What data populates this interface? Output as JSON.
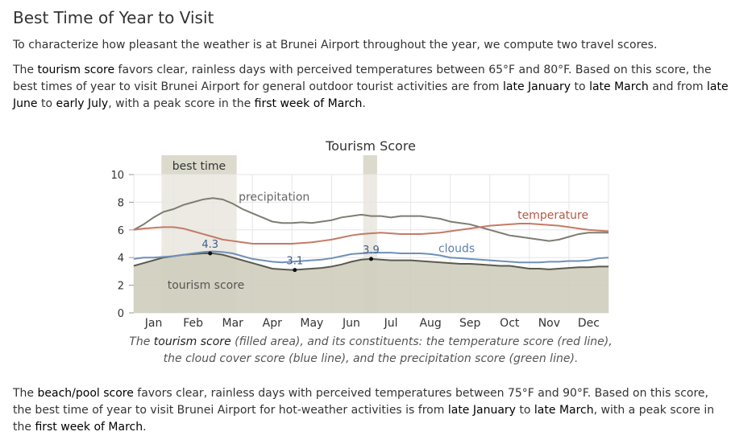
{
  "heading": "Best Time of Year to Visit",
  "intro": "To characterize how pleasant the weather is at Brunei Airport throughout the year, we compute two travel scores.",
  "tourism_para": {
    "p1": "The ",
    "k1": "tourism score",
    "p2": " favors clear, rainless days with perceived temperatures between 65°F and 80°F. Based on this score, the best times of year to visit Brunei Airport for general outdoor tourist activities are from ",
    "k2": "late January",
    "p3": " to ",
    "k3": "late March",
    "p4": " and from ",
    "k4": "late June",
    "p5": " to ",
    "k5": "early July",
    "p6": ", with a peak score in the ",
    "k6": "first week of March",
    "p7": "."
  },
  "caption": {
    "p1": "The ",
    "k1": "tourism score",
    "p2": " (filled area), and its constituents: the temperature score (red line), the cloud cover score (blue line), and the precipitation score (green line)."
  },
  "beach_para": {
    "p1": "The ",
    "k1": "beach/pool score",
    "p2": " favors clear, rainless days with perceived temperatures between 75°F and 90°F. Based on this score, the best time of year to visit Brunei Airport for hot-weather activities is from ",
    "k2": "late January",
    "p3": " to ",
    "k3": "late March",
    "p4": ", with a peak score in the ",
    "k4": "first week of March",
    "p5": "."
  },
  "chart_data": {
    "type": "area",
    "title": "Tourism Score",
    "ylim": [
      0,
      10
    ],
    "yticks": [
      0,
      2,
      4,
      6,
      8,
      10
    ],
    "xlim": [
      0,
      12
    ],
    "categories": [
      "Jan",
      "Feb",
      "Mar",
      "Apr",
      "May",
      "Jun",
      "Jul",
      "Aug",
      "Sep",
      "Oct",
      "Nov",
      "Dec"
    ],
    "best_time_label": "best time",
    "best_time_ranges": [
      [
        0.7,
        2.6
      ],
      [
        5.8,
        6.15
      ]
    ],
    "colors": {
      "tourism_fill": "#cfcdbd",
      "tourism_line": "#5a5a4e",
      "precipitation": "#7d7d72",
      "temperature": "#c47a66",
      "clouds": "#6f8fb8",
      "band": "#eceae2",
      "grid": "#e6e6e6"
    },
    "series": [
      {
        "name": "tourism score",
        "key": "tourism",
        "x": [
          0,
          0.25,
          0.5,
          0.75,
          1,
          1.25,
          1.5,
          1.75,
          2,
          2.25,
          2.5,
          2.75,
          3,
          3.25,
          3.5,
          3.75,
          4,
          4.25,
          4.5,
          4.75,
          5,
          5.25,
          5.5,
          5.75,
          6,
          6.25,
          6.5,
          6.75,
          7,
          7.25,
          7.5,
          7.75,
          8,
          8.25,
          8.5,
          8.75,
          9,
          9.25,
          9.5,
          9.75,
          10,
          10.25,
          10.5,
          10.75,
          11,
          11.25,
          11.5,
          11.75,
          12
        ],
        "values": [
          3.4,
          3.6,
          3.8,
          4.0,
          4.1,
          4.2,
          4.25,
          4.3,
          4.3,
          4.2,
          4.0,
          3.8,
          3.6,
          3.4,
          3.2,
          3.15,
          3.1,
          3.15,
          3.2,
          3.25,
          3.35,
          3.5,
          3.7,
          3.85,
          3.9,
          3.85,
          3.8,
          3.8,
          3.8,
          3.75,
          3.7,
          3.65,
          3.6,
          3.55,
          3.55,
          3.5,
          3.45,
          3.4,
          3.4,
          3.3,
          3.2,
          3.2,
          3.15,
          3.2,
          3.25,
          3.3,
          3.3,
          3.35,
          3.35
        ]
      },
      {
        "name": "precipitation",
        "key": "precipitation",
        "x": [
          0,
          0.25,
          0.5,
          0.75,
          1,
          1.25,
          1.5,
          1.75,
          2,
          2.25,
          2.5,
          2.75,
          3,
          3.25,
          3.5,
          3.75,
          4,
          4.25,
          4.5,
          4.75,
          5,
          5.25,
          5.5,
          5.75,
          6,
          6.25,
          6.5,
          6.75,
          7,
          7.25,
          7.5,
          7.75,
          8,
          8.25,
          8.5,
          8.75,
          9,
          9.25,
          9.5,
          9.75,
          10,
          10.25,
          10.5,
          10.75,
          11,
          11.25,
          11.5,
          11.75,
          12
        ],
        "values": [
          6.0,
          6.4,
          6.9,
          7.3,
          7.5,
          7.8,
          8.0,
          8.2,
          8.3,
          8.2,
          7.9,
          7.5,
          7.2,
          6.9,
          6.6,
          6.5,
          6.5,
          6.55,
          6.5,
          6.6,
          6.7,
          6.9,
          7.0,
          7.1,
          7.0,
          7.0,
          6.9,
          7.0,
          7.0,
          7.0,
          6.9,
          6.8,
          6.6,
          6.5,
          6.4,
          6.2,
          6.0,
          5.8,
          5.6,
          5.5,
          5.4,
          5.3,
          5.2,
          5.3,
          5.5,
          5.7,
          5.8,
          5.8,
          5.8
        ]
      },
      {
        "name": "temperature",
        "key": "temperature",
        "x": [
          0,
          0.25,
          0.5,
          0.75,
          1,
          1.25,
          1.5,
          1.75,
          2,
          2.25,
          2.5,
          2.75,
          3,
          3.25,
          3.5,
          3.75,
          4,
          4.25,
          4.5,
          4.75,
          5,
          5.25,
          5.5,
          5.75,
          6,
          6.25,
          6.5,
          6.75,
          7,
          7.25,
          7.5,
          7.75,
          8,
          8.25,
          8.5,
          8.75,
          9,
          9.25,
          9.5,
          9.75,
          10,
          10.25,
          10.5,
          10.75,
          11,
          11.25,
          11.5,
          11.75,
          12
        ],
        "values": [
          6.0,
          6.1,
          6.15,
          6.2,
          6.2,
          6.1,
          5.9,
          5.7,
          5.5,
          5.3,
          5.2,
          5.1,
          5.0,
          5.0,
          5.0,
          5.0,
          5.0,
          5.05,
          5.1,
          5.2,
          5.3,
          5.45,
          5.6,
          5.7,
          5.75,
          5.8,
          5.75,
          5.7,
          5.7,
          5.7,
          5.75,
          5.8,
          5.9,
          6.0,
          6.1,
          6.2,
          6.3,
          6.35,
          6.4,
          6.45,
          6.45,
          6.4,
          6.35,
          6.3,
          6.2,
          6.1,
          6.0,
          5.95,
          5.9
        ]
      },
      {
        "name": "clouds",
        "key": "clouds",
        "x": [
          0,
          0.25,
          0.5,
          0.75,
          1,
          1.25,
          1.5,
          1.75,
          2,
          2.25,
          2.5,
          2.75,
          3,
          3.25,
          3.5,
          3.75,
          4,
          4.25,
          4.5,
          4.75,
          5,
          5.25,
          5.5,
          5.75,
          6,
          6.25,
          6.5,
          6.75,
          7,
          7.25,
          7.5,
          7.75,
          8,
          8.25,
          8.5,
          8.75,
          9,
          9.25,
          9.5,
          9.75,
          10,
          10.25,
          10.5,
          10.75,
          11,
          11.25,
          11.5,
          11.75,
          12
        ],
        "values": [
          3.9,
          4.0,
          4.0,
          4.05,
          4.1,
          4.2,
          4.3,
          4.4,
          4.45,
          4.4,
          4.3,
          4.1,
          3.9,
          3.8,
          3.7,
          3.65,
          3.7,
          3.75,
          3.8,
          3.85,
          3.95,
          4.1,
          4.25,
          4.3,
          4.35,
          4.35,
          4.35,
          4.3,
          4.3,
          4.3,
          4.25,
          4.15,
          4.0,
          3.95,
          3.9,
          3.85,
          3.8,
          3.75,
          3.7,
          3.65,
          3.65,
          3.65,
          3.7,
          3.7,
          3.75,
          3.75,
          3.8,
          3.95,
          4.0
        ]
      }
    ],
    "series_labels": [
      {
        "text": "precipitation",
        "x": 2.65,
        "y": 8.1,
        "key": "precipitation"
      },
      {
        "text": "temperature",
        "x": 9.7,
        "y": 6.8,
        "key": "temperature"
      },
      {
        "text": "clouds",
        "x": 7.7,
        "y": 4.4,
        "key": "clouds"
      },
      {
        "text": "tourism score",
        "x": 0.85,
        "y": 1.75,
        "key": "tourism"
      }
    ],
    "annotations": [
      {
        "text": "4.3",
        "x": 1.93,
        "y": 4.3
      },
      {
        "text": "3.1",
        "x": 4.07,
        "y": 3.1
      },
      {
        "text": "3.9",
        "x": 6.0,
        "y": 3.9
      }
    ]
  }
}
